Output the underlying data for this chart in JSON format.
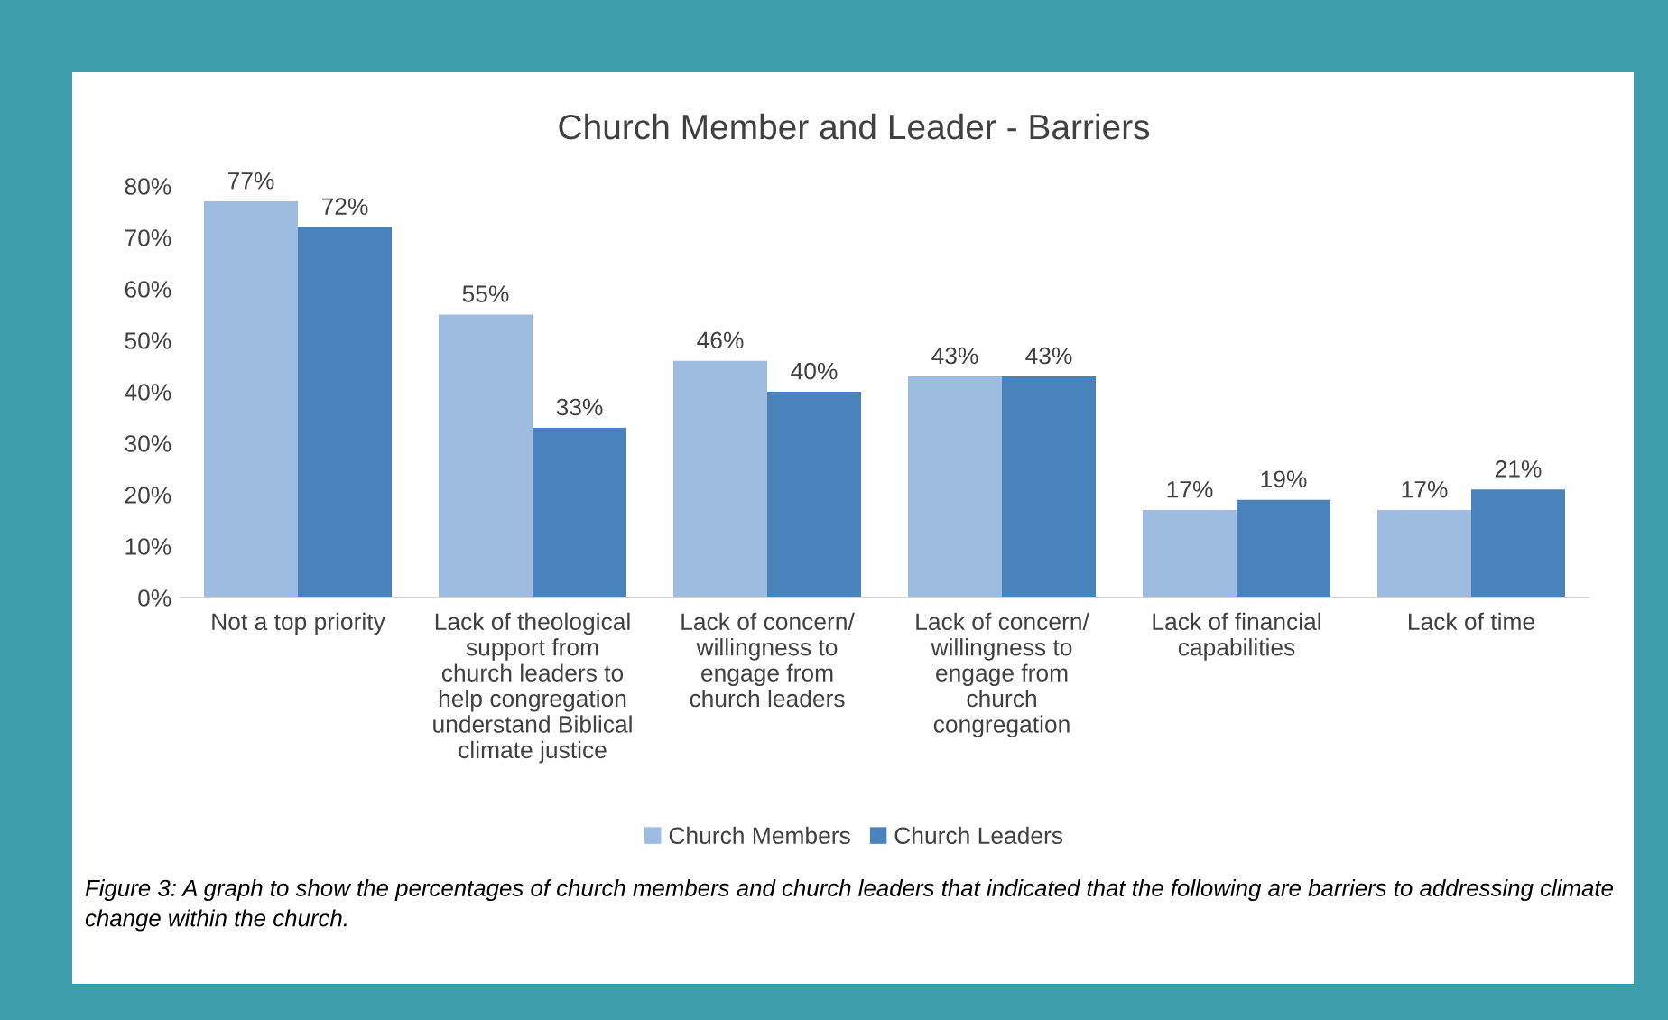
{
  "chart_data": {
    "type": "bar",
    "title": "Church Member and Leader - Barriers",
    "categories": [
      "Not a top priority",
      "Lack of theological\nsupport from\nchurch leaders to\nhelp congregation\nunderstand Biblical\nclimate justice",
      "Lack of concern/\nwillingness to\nengage from\nchurch leaders",
      "Lack of concern/\nwillingness to\nengage from\nchurch\ncongregation",
      "Lack of financial\ncapabilities",
      "Lack of time"
    ],
    "series": [
      {
        "name": "Church Members",
        "color": "#9dbce0",
        "values": [
          77,
          55,
          46,
          43,
          17,
          17
        ],
        "value_labels": [
          "77%",
          "55%",
          "46%",
          "43%",
          "17%",
          "17%"
        ]
      },
      {
        "name": "Church Leaders",
        "color": "#4a82bc",
        "values": [
          72,
          33,
          40,
          43,
          19,
          21
        ],
        "value_labels": [
          "72%",
          "33%",
          "40%",
          "43%",
          "19%",
          "21%"
        ]
      }
    ],
    "ylim": [
      0,
      80
    ],
    "yticks": [
      {
        "value": 0,
        "label": "0%"
      },
      {
        "value": 10,
        "label": "10%"
      },
      {
        "value": 20,
        "label": "20%"
      },
      {
        "value": 30,
        "label": "30%"
      },
      {
        "value": 40,
        "label": "40%"
      },
      {
        "value": 50,
        "label": "50%"
      },
      {
        "value": 60,
        "label": "60%"
      },
      {
        "value": 70,
        "label": "70%"
      },
      {
        "value": 80,
        "label": "80%"
      }
    ],
    "legend": "bottom",
    "annotations": [
      "Figure 3: A graph to show the percentages of church members and church leaders that indicated that the following are barriers to addressing climate change within the church."
    ]
  }
}
